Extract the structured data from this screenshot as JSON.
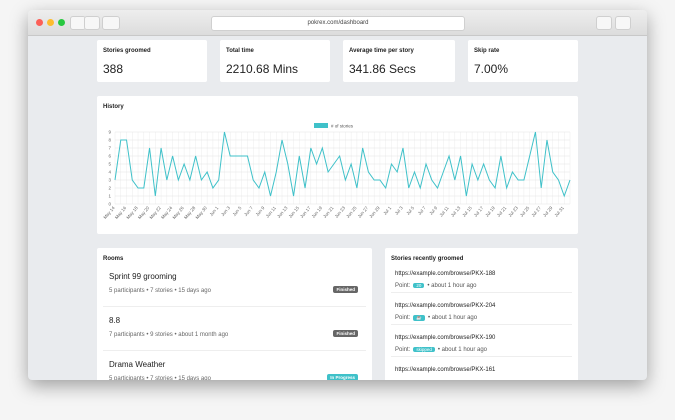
{
  "browser": {
    "url": "pokrex.com/dashboard"
  },
  "stats": [
    {
      "label": "Stories groomed",
      "value": "388"
    },
    {
      "label": "Total time",
      "value": "2210.68 Mins"
    },
    {
      "label": "Average time per story",
      "value": "341.86 Secs"
    },
    {
      "label": "Skip rate",
      "value": "7.00%"
    }
  ],
  "chart_data": {
    "type": "line",
    "title": "History",
    "categories": [
      "May 14",
      null,
      "May 16",
      null,
      "May 18",
      null,
      "May 20",
      null,
      "May 22",
      null,
      "May 24",
      null,
      "May 26",
      null,
      "May 28",
      null,
      "May 30",
      null,
      "Jun 1",
      null,
      "Jun 3",
      null,
      "Jun 5",
      null,
      "Jun 7",
      null,
      "Jun 9",
      null,
      "Jun 11",
      null,
      "Jun 13",
      null,
      "Jun 15",
      null,
      "Jun 17",
      null,
      "Jun 19",
      null,
      "Jun 21",
      null,
      "Jun 23",
      null,
      "Jun 25",
      null,
      "Jun 27",
      null,
      "Jun 29",
      null,
      "Jul 1",
      null,
      "Jul 3",
      null,
      "Jul 5",
      null,
      "Jul 7",
      null,
      "Jul 9",
      null,
      "Jul 11",
      null,
      "Jul 13",
      null,
      "Jul 15",
      null,
      "Jul 17",
      null,
      "Jul 19",
      null,
      "Jul 21",
      null,
      "Jul 23",
      null,
      "Jul 25",
      null,
      "Jul 27",
      null,
      "Jul 29",
      null,
      "Jul 31",
      null
    ],
    "series": [
      {
        "name": "# of stories",
        "color": "#3fc1c9",
        "values": [
          3,
          8,
          8,
          3,
          2,
          2,
          7,
          1,
          7,
          3,
          6,
          3,
          5,
          3,
          6,
          3,
          4,
          2,
          3,
          9,
          6,
          6,
          6,
          6,
          3,
          2,
          4,
          1,
          4,
          8,
          5,
          1,
          6,
          2,
          7,
          5,
          7,
          4,
          5,
          6,
          3,
          5,
          2,
          7,
          4,
          3,
          3,
          2,
          5,
          4,
          7,
          2,
          4,
          2,
          5,
          3,
          2,
          4,
          6,
          3,
          6,
          1,
          5,
          3,
          5,
          3,
          2,
          6,
          2,
          4,
          3,
          3,
          6,
          9,
          2,
          8,
          4,
          3,
          1,
          3
        ]
      }
    ],
    "ylim": [
      0,
      9
    ],
    "yticks": [
      0,
      1,
      2,
      3,
      4,
      5,
      6,
      7,
      8,
      9
    ],
    "grid": true,
    "legend": "top"
  },
  "rooms": {
    "title": "Rooms",
    "items": [
      {
        "name": "Sprint 99 grooming",
        "meta": "5 participants • 7 stories • 15 days ago",
        "status": "Finished"
      },
      {
        "name": "8.8",
        "meta": "7 participants • 9 stories • about 1 month ago",
        "status": "Finished"
      },
      {
        "name": "Drama Weather",
        "meta": "5 participants • 7 stories • 15 days ago",
        "status": "In Progress"
      }
    ]
  },
  "stories": {
    "title": "Stories recently groomed",
    "items": [
      {
        "url": "https://example.com/browse/PKX-188",
        "point_label": "Point:",
        "point": "20",
        "time": "• about 1 hour ago"
      },
      {
        "url": "https://example.com/browse/PKX-204",
        "point_label": "Point:",
        "point": "☕",
        "time": "• about 1 hour ago"
      },
      {
        "url": "https://example.com/browse/PKX-190",
        "point_label": "Point:",
        "point": "skipped",
        "time": "• about 1 hour ago"
      },
      {
        "url": "https://example.com/browse/PKX-161"
      }
    ]
  }
}
